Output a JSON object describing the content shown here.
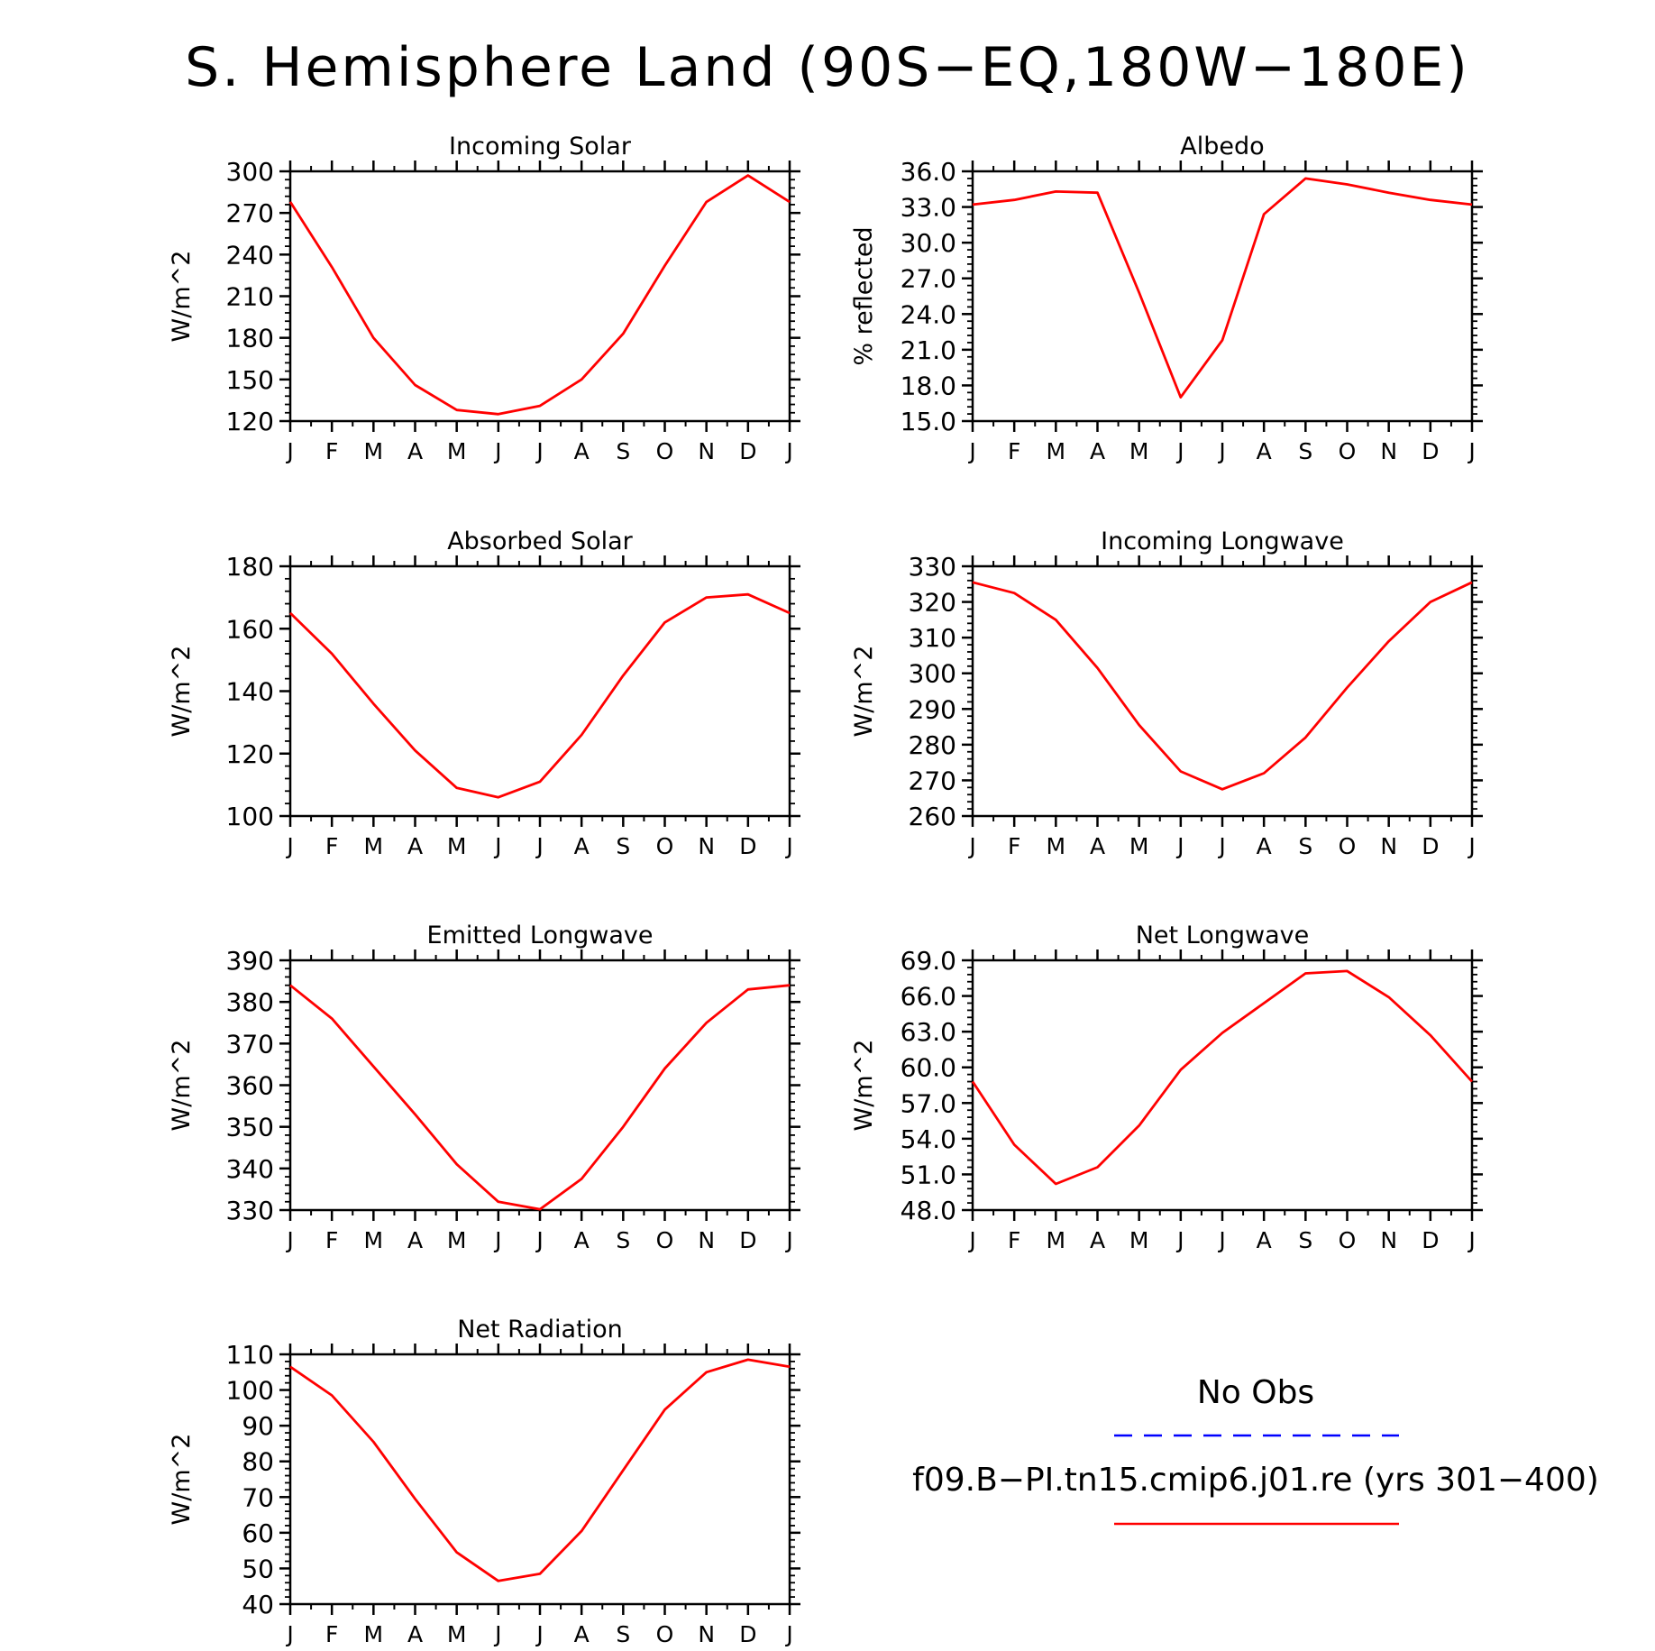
{
  "title": "S. Hemisphere Land (90S−EQ,180W−180E)",
  "month_labels": [
    "J",
    "F",
    "M",
    "A",
    "M",
    "J",
    "J",
    "A",
    "S",
    "O",
    "N",
    "D",
    "J"
  ],
  "legend": {
    "obs_label": "No Obs",
    "obs_color": "#0000ff",
    "model_label": "f09.B−PI.tn15.cmip6.j01.re (yrs 301−400)",
    "model_color": "#ff0000"
  },
  "chart_data": [
    {
      "type": "line",
      "title": "Incoming Solar",
      "ylabel": "W/m^2",
      "ylim": [
        120,
        300
      ],
      "yticks": [
        120,
        150,
        180,
        210,
        240,
        270,
        300
      ],
      "ytick_labels": [
        "120",
        "150",
        "180",
        "210",
        "240",
        "270",
        "300"
      ],
      "x": [
        "J",
        "F",
        "M",
        "A",
        "M",
        "J",
        "J",
        "A",
        "S",
        "O",
        "N",
        "D",
        "J"
      ],
      "series": [
        {
          "color": "#ff0000",
          "values": [
            278,
            231,
            180,
            146,
            128,
            125,
            131,
            150,
            183,
            232,
            278,
            297,
            278
          ]
        }
      ]
    },
    {
      "type": "line",
      "title": "Albedo",
      "ylabel": "% reflected",
      "ylim": [
        15,
        36
      ],
      "yticks": [
        15,
        18,
        21,
        24,
        27,
        30,
        33,
        36
      ],
      "ytick_labels": [
        "15.0",
        "18.0",
        "21.0",
        "24.0",
        "27.0",
        "30.0",
        "33.0",
        "36.0"
      ],
      "x": [
        "J",
        "F",
        "M",
        "A",
        "M",
        "J",
        "J",
        "A",
        "S",
        "O",
        "N",
        "D",
        "J"
      ],
      "series": [
        {
          "color": "#ff0000",
          "values": [
            33.2,
            33.6,
            34.3,
            34.2,
            25.8,
            17.0,
            21.8,
            32.4,
            35.4,
            34.9,
            34.2,
            33.6,
            33.2
          ]
        }
      ]
    },
    {
      "type": "line",
      "title": "Absorbed Solar",
      "ylabel": "W/m^2",
      "ylim": [
        100,
        180
      ],
      "yticks": [
        100,
        120,
        140,
        160,
        180
      ],
      "ytick_labels": [
        "100",
        "120",
        "140",
        "160",
        "180"
      ],
      "x": [
        "J",
        "F",
        "M",
        "A",
        "M",
        "J",
        "J",
        "A",
        "S",
        "O",
        "N",
        "D",
        "J"
      ],
      "series": [
        {
          "color": "#ff0000",
          "values": [
            165,
            152,
            136,
            121,
            109,
            106,
            111,
            126,
            145,
            162,
            170,
            171,
            165
          ]
        }
      ]
    },
    {
      "type": "line",
      "title": "Incoming Longwave",
      "ylabel": "W/m^2",
      "ylim": [
        260,
        330
      ],
      "yticks": [
        260,
        270,
        280,
        290,
        300,
        310,
        320,
        330
      ],
      "ytick_labels": [
        "260",
        "270",
        "280",
        "290",
        "300",
        "310",
        "320",
        "330"
      ],
      "x": [
        "J",
        "F",
        "M",
        "A",
        "M",
        "J",
        "J",
        "A",
        "S",
        "O",
        "N",
        "D",
        "J"
      ],
      "series": [
        {
          "color": "#ff0000",
          "values": [
            325.5,
            322.5,
            315,
            301.5,
            285.5,
            272.5,
            267.5,
            272,
            282,
            296,
            309,
            320,
            325.5
          ]
        }
      ]
    },
    {
      "type": "line",
      "title": "Emitted Longwave",
      "ylabel": "W/m^2",
      "ylim": [
        330,
        390
      ],
      "yticks": [
        330,
        340,
        350,
        360,
        370,
        380,
        390
      ],
      "ytick_labels": [
        "330",
        "340",
        "350",
        "360",
        "370",
        "380",
        "390"
      ],
      "x": [
        "J",
        "F",
        "M",
        "A",
        "M",
        "J",
        "J",
        "A",
        "S",
        "O",
        "N",
        "D",
        "J"
      ],
      "series": [
        {
          "color": "#ff0000",
          "values": [
            384,
            376,
            364.5,
            353,
            341,
            332,
            330.2,
            337.5,
            350,
            364,
            375,
            383,
            384
          ]
        }
      ]
    },
    {
      "type": "line",
      "title": "Net Longwave",
      "ylabel": "W/m^2",
      "ylim": [
        48,
        69
      ],
      "yticks": [
        48,
        51,
        54,
        57,
        60,
        63,
        66,
        69
      ],
      "ytick_labels": [
        "48.0",
        "51.0",
        "54.0",
        "57.0",
        "60.0",
        "63.0",
        "66.0",
        "69.0"
      ],
      "x": [
        "J",
        "F",
        "M",
        "A",
        "M",
        "J",
        "J",
        "A",
        "S",
        "O",
        "N",
        "D",
        "J"
      ],
      "series": [
        {
          "color": "#ff0000",
          "values": [
            58.8,
            53.5,
            50.2,
            51.6,
            55.1,
            59.8,
            62.9,
            65.4,
            67.9,
            68.1,
            65.9,
            62.7,
            58.8
          ]
        }
      ]
    },
    {
      "type": "line",
      "title": "Net Radiation",
      "ylabel": "W/m^2",
      "ylim": [
        40,
        110
      ],
      "yticks": [
        40,
        50,
        60,
        70,
        80,
        90,
        100,
        110
      ],
      "ytick_labels": [
        "40",
        "50",
        "60",
        "70",
        "80",
        "90",
        "100",
        "110"
      ],
      "x": [
        "J",
        "F",
        "M",
        "A",
        "M",
        "J",
        "J",
        "A",
        "S",
        "O",
        "N",
        "D",
        "J"
      ],
      "series": [
        {
          "color": "#ff0000",
          "values": [
            106.5,
            98.5,
            85.5,
            69.5,
            54.5,
            46.5,
            48.5,
            60.5,
            77.5,
            94.5,
            105,
            108.5,
            106.5
          ]
        }
      ]
    }
  ]
}
